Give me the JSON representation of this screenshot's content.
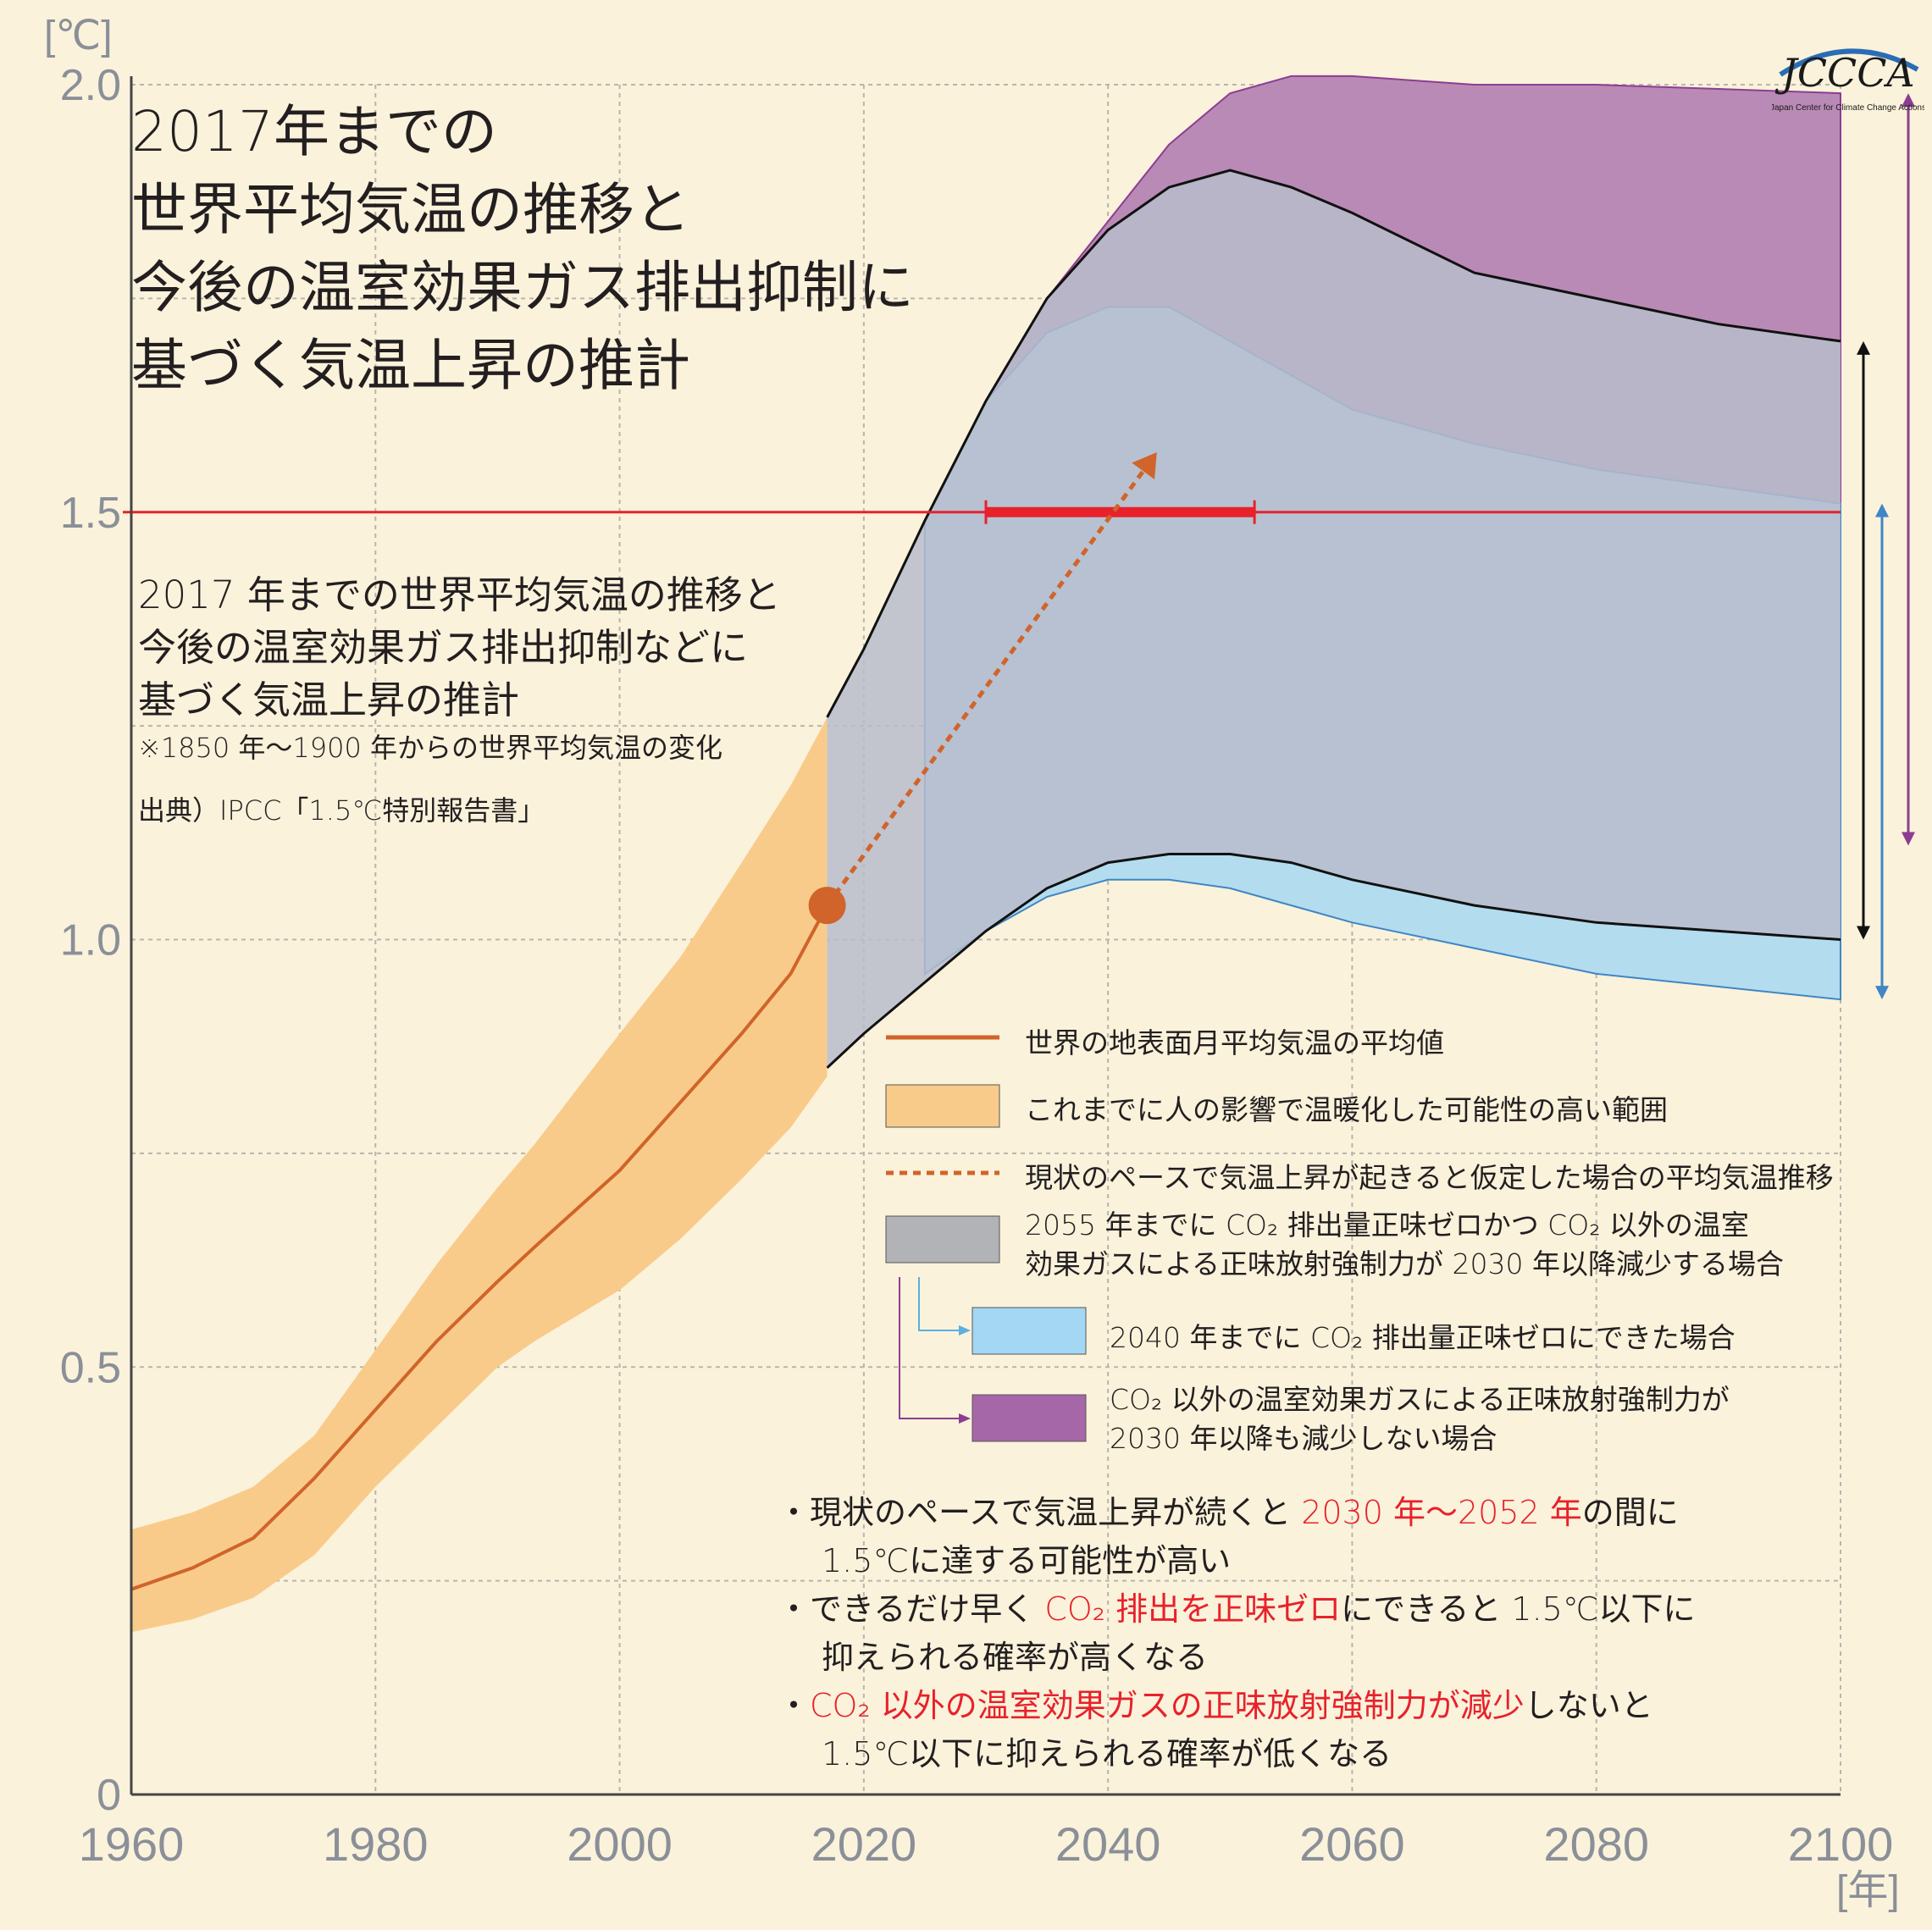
{
  "title": [
    "2017年までの",
    "世界平均気温の推移と",
    "今後の温室効果ガス排出抑制に",
    "基づく気温上昇の推計"
  ],
  "subtitle": [
    "2017 年までの世界平均気温の推移と",
    "今後の温室効果ガス排出抑制などに",
    "基づく気温上昇の推計"
  ],
  "note": "※1850 年～1900 年からの世界平均気温の変化",
  "source": "出典）IPCC「1.5℃特別報告書」",
  "logo": {
    "text": "JCCCA",
    "caption": "Japan Center for Climate Change Actions"
  },
  "colors": {
    "background": "#faf2db",
    "observed_line": "#d0642a",
    "observed_band": "#f9cb8a",
    "gray_band": "#b7bccb",
    "blue_band": "#b4dcef",
    "purple_band": "#b98ab5",
    "threshold": "#e8212b"
  },
  "legend": {
    "items": [
      {
        "label": "世界の地表面月平均気温の平均値"
      },
      {
        "label": "これまでに人の影響で温暖化した可能性の高い範囲"
      },
      {
        "label": "現状のペースで気温上昇が起きると仮定した場合の平均気温推移"
      },
      {
        "label": [
          "2055 年までに CO₂ 排出量正味ゼロかつ CO₂ 以外の温室",
          "効果ガスによる正味放射強制力が 2030 年以降減少する場合"
        ]
      },
      {
        "label": "2040 年までに CO₂ 排出量正味ゼロにできた場合"
      },
      {
        "label": [
          "CO₂ 以外の温室効果ガスによる正味放射強制力が",
          "2030 年以降も減少しない場合"
        ]
      }
    ]
  },
  "bullets": [
    {
      "line1": [
        {
          "t": "・現状のペースで気温上昇が続くと "
        },
        {
          "t": "2030 年～2052 年",
          "red": true
        },
        {
          "t": "の間に"
        }
      ],
      "line2": "1.5℃に達する可能性が高い"
    },
    {
      "line1": [
        {
          "t": "・できるだけ早く "
        },
        {
          "t": "CO₂ 排出を正味ゼロ",
          "red": true
        },
        {
          "t": "にできると 1.5℃以下に"
        }
      ],
      "line2": "抑えられる確率が高くなる"
    },
    {
      "line1": [
        {
          "t": "・"
        },
        {
          "t": "CO₂ 以外の温室効果ガスの正味放射強制力が減少",
          "red": true
        },
        {
          "t": "しないと"
        }
      ],
      "line2": "1.5℃以下に抑えられる確率が低くなる"
    }
  ],
  "chart_data": {
    "type": "area",
    "y_unit": "[℃]",
    "x_unit": "[年]",
    "xlim": [
      1960,
      2100
    ],
    "ylim": [
      0,
      2.0
    ],
    "x_ticks": [
      "1960",
      "1980",
      "2000",
      "2020",
      "2040",
      "2060",
      "2080",
      "2100"
    ],
    "y_ticks": [
      "0",
      "0.5",
      "1.0",
      "1.5",
      "2.0"
    ],
    "grid": true,
    "threshold": {
      "y": 1.5,
      "range_start": 2030,
      "range_end": 2052
    },
    "observed_mean": {
      "x": [
        1960,
        1965,
        1970,
        1975,
        1980,
        1985,
        1990,
        1993,
        2000,
        2005,
        2010,
        2014,
        2017
      ],
      "y": [
        0.24,
        0.265,
        0.3,
        0.37,
        0.45,
        0.53,
        0.6,
        0.64,
        0.73,
        0.81,
        0.89,
        0.96,
        1.04
      ]
    },
    "observed_range": {
      "x": [
        1960,
        1965,
        1970,
        1975,
        1980,
        1985,
        1990,
        1993,
        2000,
        2005,
        2010,
        2014,
        2017
      ],
      "lower": [
        0.19,
        0.205,
        0.23,
        0.28,
        0.36,
        0.43,
        0.5,
        0.53,
        0.59,
        0.65,
        0.72,
        0.78,
        0.84
      ],
      "upper": [
        0.31,
        0.33,
        0.36,
        0.42,
        0.52,
        0.62,
        0.71,
        0.76,
        0.89,
        0.98,
        1.09,
        1.18,
        1.26
      ]
    },
    "current_pace_projection": {
      "x": [
        2017,
        2044
      ],
      "y": [
        1.04,
        1.57
      ]
    },
    "scenario_2055": {
      "x": [
        2017,
        2020,
        2025,
        2030,
        2035,
        2040,
        2045,
        2050,
        2055,
        2060,
        2070,
        2080,
        2090,
        2100
      ],
      "lower": [
        0.85,
        0.89,
        0.95,
        1.01,
        1.06,
        1.09,
        1.1,
        1.1,
        1.09,
        1.07,
        1.04,
        1.02,
        1.01,
        1.0
      ],
      "upper": [
        1.26,
        1.34,
        1.49,
        1.63,
        1.75,
        1.83,
        1.88,
        1.9,
        1.88,
        1.85,
        1.78,
        1.75,
        1.72,
        1.7
      ]
    },
    "scenario_2040": {
      "x": [
        2025,
        2030,
        2035,
        2040,
        2045,
        2050,
        2055,
        2060,
        2070,
        2080,
        2090,
        2100
      ],
      "lower": [
        0.96,
        1.01,
        1.05,
        1.07,
        1.07,
        1.06,
        1.04,
        1.02,
        0.99,
        0.96,
        0.945,
        0.93
      ],
      "upper": [
        1.49,
        1.63,
        1.71,
        1.74,
        1.74,
        1.7,
        1.66,
        1.62,
        1.58,
        1.55,
        1.53,
        1.51
      ]
    },
    "scenario_non_co2": {
      "x": [
        2030,
        2035,
        2040,
        2045,
        2050,
        2055,
        2060,
        2070,
        2080,
        2090,
        2100
      ],
      "lower": [
        1.01,
        1.06,
        1.09,
        1.12,
        1.14,
        1.14,
        1.14,
        1.13,
        1.12,
        1.115,
        1.11
      ],
      "upper": [
        1.63,
        1.75,
        1.84,
        1.93,
        1.99,
        2.01,
        2.01,
        2.0,
        2.0,
        1.995,
        1.99
      ]
    },
    "range_arrows": {
      "purple": [
        1.11,
        1.99
      ],
      "black": [
        1.0,
        1.7
      ],
      "blue": [
        0.93,
        1.51
      ]
    }
  }
}
